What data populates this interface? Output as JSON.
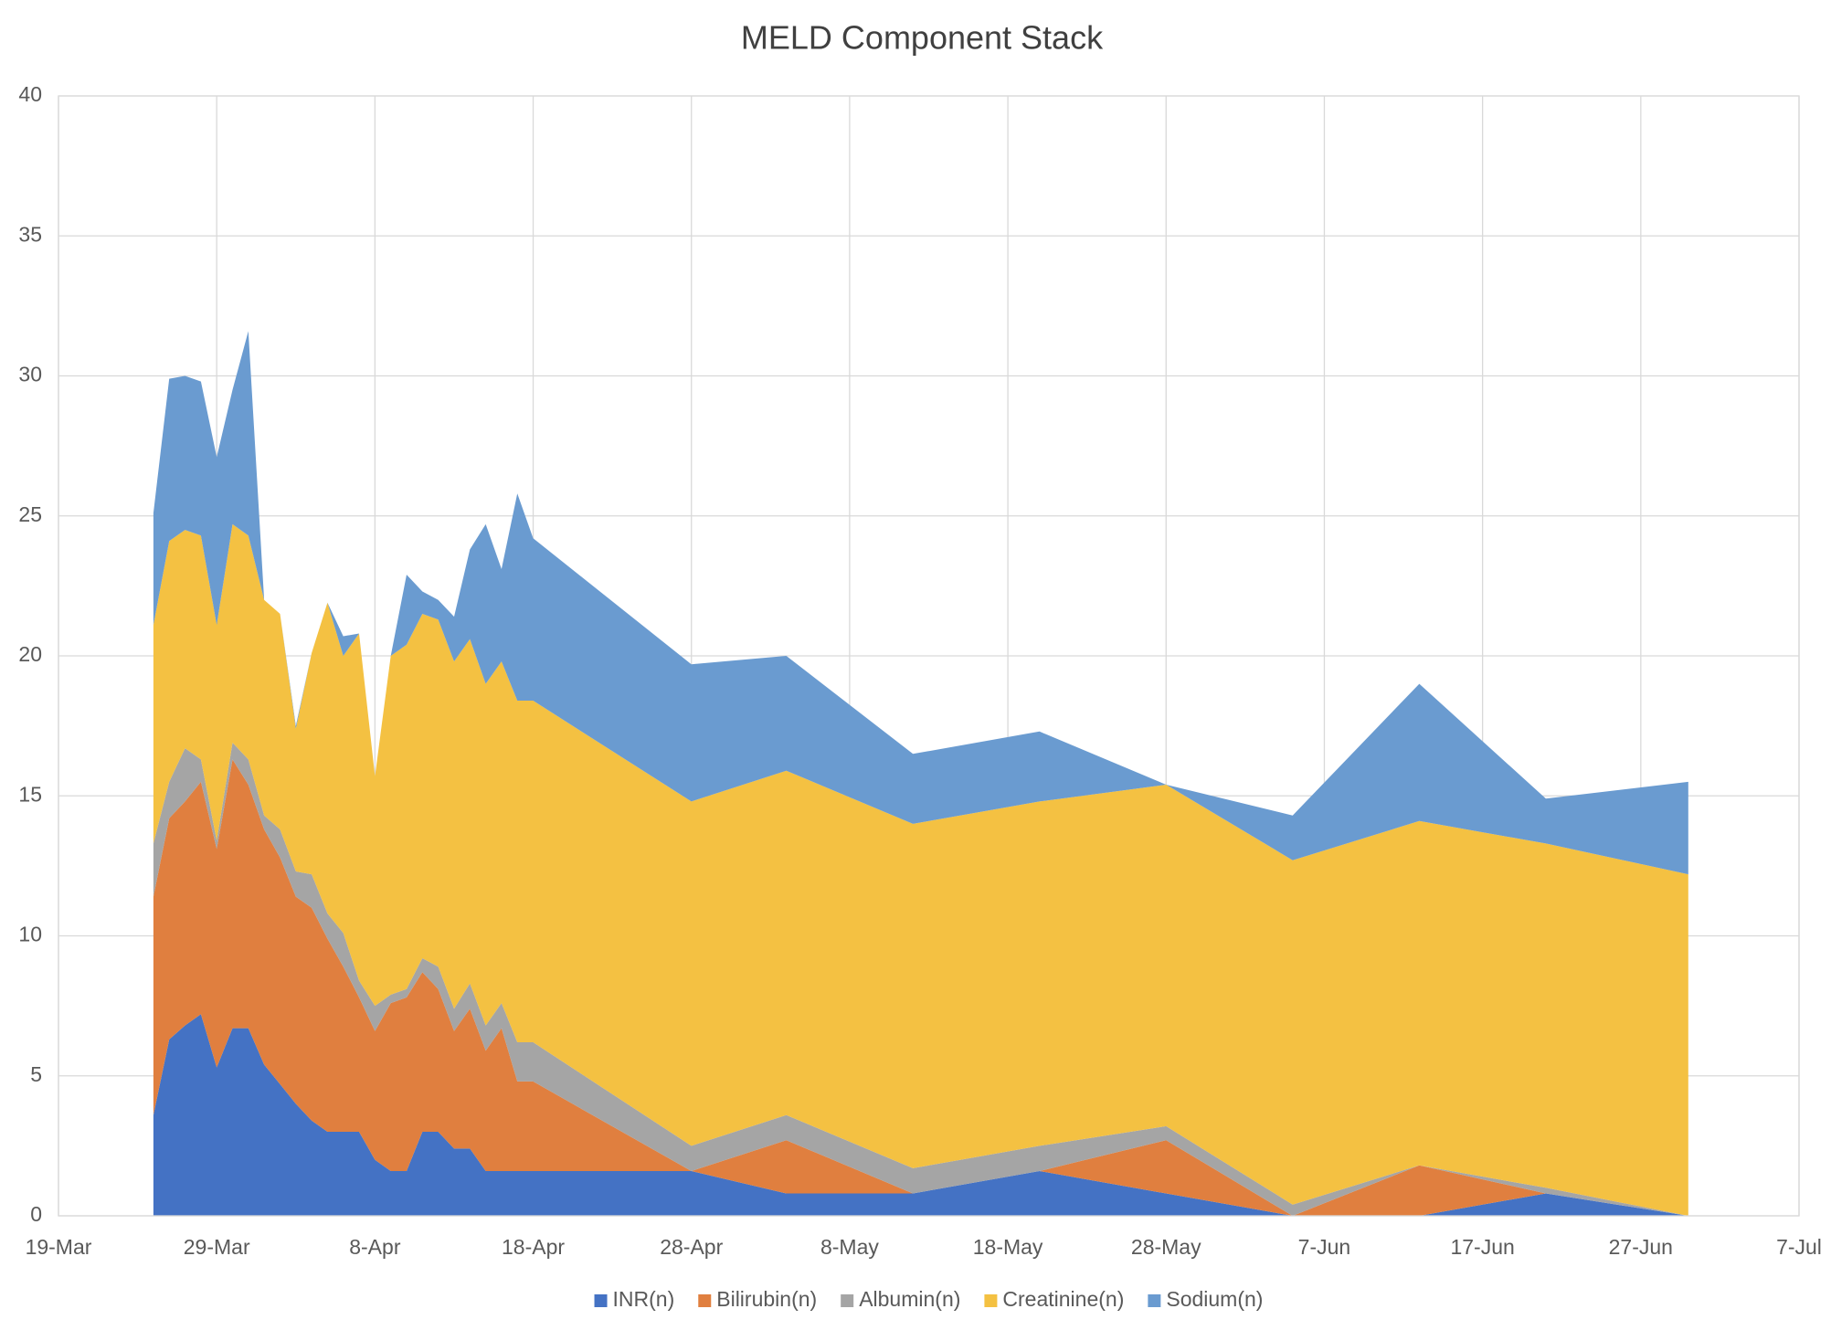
{
  "chart_data": {
    "type": "stacked_area",
    "title": "MELD Component Stack",
    "x": [
      "25-Mar",
      "26-Mar",
      "27-Mar",
      "28-Mar",
      "29-Mar",
      "30-Mar",
      "31-Mar",
      "1-Apr",
      "2-Apr",
      "3-Apr",
      "4-Apr",
      "5-Apr",
      "6-Apr",
      "7-Apr",
      "8-Apr",
      "9-Apr",
      "10-Apr",
      "11-Apr",
      "12-Apr",
      "13-Apr",
      "14-Apr",
      "15-Apr",
      "16-Apr",
      "17-Apr",
      "18-Apr",
      "28-Apr",
      "4-May",
      "12-May",
      "20-May",
      "28-May",
      "5-Jun",
      "13-Jun",
      "21-Jun",
      "30-Jun"
    ],
    "series": [
      {
        "name": "INR(n)",
        "color": "#4472c4",
        "values": [
          3.6,
          6.3,
          6.8,
          7.2,
          5.3,
          6.7,
          6.7,
          5.4,
          4.7,
          4.0,
          3.4,
          3.0,
          3.0,
          3.0,
          2.0,
          1.6,
          1.6,
          3.0,
          3.0,
          2.4,
          2.4,
          1.6,
          1.6,
          1.6,
          1.6,
          1.6,
          0.8,
          0.8,
          1.6,
          0.8,
          0,
          0,
          0.8,
          0
        ]
      },
      {
        "name": "Bilirubin(n)",
        "color": "#e07f3f",
        "values": [
          7.8,
          7.9,
          8.0,
          8.3,
          7.8,
          9.6,
          8.7,
          8.4,
          8.1,
          7.4,
          7.6,
          6.9,
          5.9,
          4.8,
          4.6,
          6.0,
          6.2,
          5.7,
          5.1,
          4.2,
          5.0,
          4.3,
          5.1,
          3.2,
          3.2,
          0,
          1.9,
          0,
          0,
          1.9,
          0,
          1.8,
          0,
          0
        ]
      },
      {
        "name": "Albumin(n)",
        "color": "#a5a5a5",
        "values": [
          1.9,
          1.3,
          1.9,
          0.8,
          0.3,
          0.6,
          0.9,
          0.5,
          1.0,
          0.9,
          1.2,
          0.9,
          1.2,
          0.6,
          0.9,
          0.3,
          0.3,
          0.5,
          0.8,
          0.8,
          0.9,
          0.9,
          0.9,
          1.4,
          1.4,
          0.9,
          0.9,
          0.9,
          0.9,
          0.5,
          0.4,
          0,
          0.2,
          0
        ]
      },
      {
        "name": "Creatinine(n)",
        "color": "#f4c142",
        "values": [
          7.8,
          8.6,
          7.8,
          8.0,
          7.7,
          7.8,
          8.0,
          7.7,
          7.7,
          5.1,
          7.9,
          11.1,
          9.9,
          12.4,
          8.2,
          12.1,
          12.3,
          12.3,
          12.4,
          12.4,
          12.3,
          12.2,
          12.2,
          12.2,
          12.2,
          12.3,
          12.3,
          12.3,
          12.3,
          12.2,
          12.3,
          12.3,
          12.3,
          12.2
        ]
      },
      {
        "name": "Sodium(n)",
        "color": "#6a9bd0",
        "values": [
          4.0,
          5.8,
          5.5,
          5.5,
          6.0,
          4.8,
          7.3,
          0,
          0,
          0.1,
          0,
          0,
          0.7,
          0,
          0,
          0,
          2.5,
          0.8,
          0.7,
          1.6,
          3.2,
          5.7,
          3.3,
          7.4,
          5.8,
          4.9,
          4.1,
          2.5,
          2.5,
          0,
          1.6,
          4.9,
          1.6,
          3.3
        ]
      }
    ],
    "xlim": [
      "19-Mar",
      "7-Jul"
    ],
    "xticks": [
      "19-Mar",
      "29-Mar",
      "8-Apr",
      "18-Apr",
      "28-Apr",
      "8-May",
      "18-May",
      "28-May",
      "7-Jun",
      "17-Jun",
      "27-Jun",
      "7-Jul"
    ],
    "ylim": [
      0,
      40
    ],
    "yticks": [
      0,
      5,
      10,
      15,
      20,
      25,
      30,
      35,
      40
    ],
    "grid": true,
    "legend": "bottom"
  }
}
